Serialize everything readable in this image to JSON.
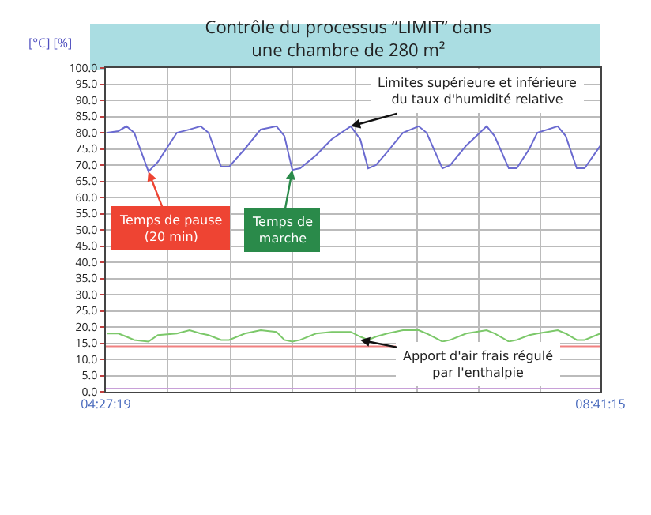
{
  "chart_data": {
    "type": "line",
    "title": "Contrôle du processus “LIMIT” dans\nune chambre de 280 m²",
    "ylabel": "[°C] [%]",
    "x": [
      4.469,
      4.563,
      4.631,
      4.698,
      4.82,
      4.901,
      5.063,
      5.172,
      5.266,
      5.334,
      5.442,
      5.51,
      5.645,
      5.78,
      5.915,
      5.983,
      6.051,
      6.118,
      6.253,
      6.388,
      6.551,
      6.632,
      6.7,
      6.767,
      6.862,
      6.997,
      7.132,
      7.2,
      7.335,
      7.403,
      7.538,
      7.714,
      7.781,
      7.903,
      7.971,
      8.079,
      8.147,
      8.322,
      8.39,
      8.485,
      8.552,
      8.687
    ],
    "series": [
      {
        "color": "#6a6ad0",
        "values": [
          80,
          80.5,
          82,
          80,
          68,
          71,
          80,
          81,
          82,
          80,
          69.5,
          69.5,
          75,
          81,
          82,
          79,
          68.5,
          69,
          73,
          78,
          82,
          78,
          69,
          70,
          74,
          80,
          82,
          80,
          69,
          70,
          76,
          82,
          79,
          69,
          69,
          75,
          80,
          82,
          79,
          69,
          69,
          76
        ]
      },
      {
        "color": "#7cc86a",
        "values": [
          18,
          18,
          17,
          16,
          15.5,
          17.5,
          18,
          19,
          18,
          17.5,
          16,
          16,
          18,
          19,
          18.5,
          16,
          15.5,
          16,
          18,
          18.5,
          18.5,
          17,
          16,
          17,
          18,
          19,
          19,
          18,
          15.5,
          16,
          18,
          19,
          18,
          15.5,
          16,
          17.5,
          18,
          19,
          18,
          16,
          16,
          18
        ]
      }
    ],
    "xlim": [
      4.45528,
      8.6875
    ],
    "xticks": [
      {
        "value": 4.45528,
        "label": "04:27:19"
      },
      {
        "value": 4.982,
        "label": null
      },
      {
        "value": 5.523,
        "label": null
      },
      {
        "value": 6.051,
        "label": null
      },
      {
        "value": 6.591,
        "label": null
      },
      {
        "value": 7.119,
        "label": null
      },
      {
        "value": 7.646,
        "label": null
      },
      {
        "value": 8.174,
        "label": null
      },
      {
        "value": 8.6875,
        "label": "08:41:15"
      }
    ],
    "ylim": [
      0,
      100
    ],
    "yticks": [
      {
        "value": 0,
        "label": "0.0"
      },
      {
        "value": 5,
        "label": "5.0"
      },
      {
        "value": 10,
        "label": "10.0"
      },
      {
        "value": 15,
        "label": "15.0"
      },
      {
        "value": 20,
        "label": "20.0"
      },
      {
        "value": 25,
        "label": "25.0"
      },
      {
        "value": 30,
        "label": "30.0"
      },
      {
        "value": 35,
        "label": "35.0"
      },
      {
        "value": 40,
        "label": "40.0"
      },
      {
        "value": 45,
        "label": "45.0"
      },
      {
        "value": 50,
        "label": "50.0"
      },
      {
        "value": 55,
        "label": "55.0"
      },
      {
        "value": 60,
        "label": "60.0"
      },
      {
        "value": 65,
        "label": "65.0"
      },
      {
        "value": 70,
        "label": "70.0"
      },
      {
        "value": 75,
        "label": "75.0"
      },
      {
        "value": 80,
        "label": "80.0"
      },
      {
        "value": 85,
        "label": "85.0"
      },
      {
        "value": 90,
        "label": "90.0"
      },
      {
        "value": 95,
        "label": "95.0"
      },
      {
        "value": 100,
        "label": "100.0"
      }
    ],
    "ref_lines": [
      {
        "axis": "y",
        "value": 14,
        "color": "#f08080"
      },
      {
        "axis": "y",
        "value": 1,
        "color": "#c8a0d8"
      }
    ],
    "annotations": [
      {
        "text": "Limites supérieure et inférieure\ndu taux d'humidité relative",
        "x": 6.551,
        "y": 82
      },
      {
        "text": "Temps de pause\n(20 min)",
        "x": 4.82,
        "y": 68
      },
      {
        "text": "Temps de\nmarche",
        "x": 6.051,
        "y": 68.5
      },
      {
        "text": "Apport d'air frais régulé\npar l'enthalpie",
        "x": 6.632,
        "y": 16
      }
    ],
    "grid": true,
    "marker": "none",
    "line_style": "solid"
  }
}
